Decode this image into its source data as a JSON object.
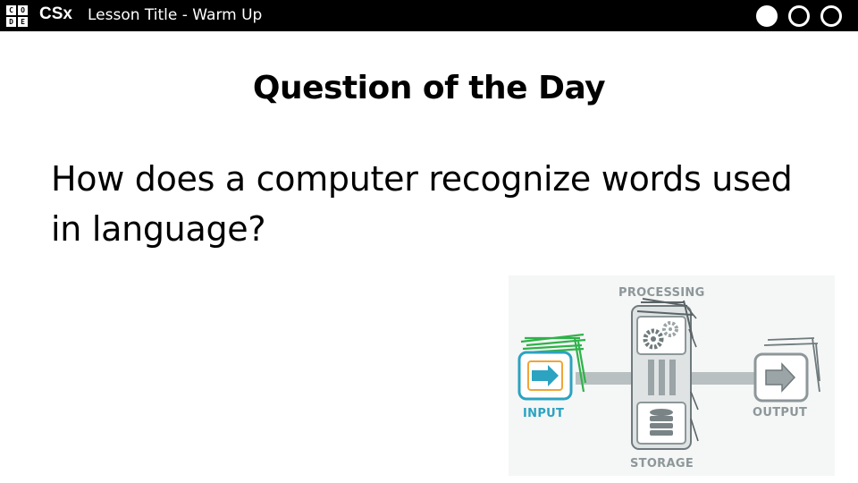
{
  "header": {
    "logo_letters": [
      "C",
      "O",
      "D",
      "E"
    ],
    "brand": "CSx",
    "lesson_title": "Lesson Title - Warm Up",
    "progress_dots": [
      {
        "state": "filled"
      },
      {
        "state": "empty"
      },
      {
        "state": "empty"
      }
    ]
  },
  "slide": {
    "heading": "Question of the Day",
    "question": "How does a computer recognize words used in language?"
  },
  "diagram": {
    "labels": {
      "processing": "PROCESSING",
      "input": "INPUT",
      "output": "OUTPUT",
      "storage": "STORAGE"
    },
    "icons": [
      "gears-icon",
      "arrow-right-icon",
      "database-icon"
    ],
    "colors": {
      "input_accent": "#2ba3c1",
      "input_scribble": "#2fb24a",
      "input_frame": "#f0a637",
      "gray": "#8d9799"
    }
  }
}
